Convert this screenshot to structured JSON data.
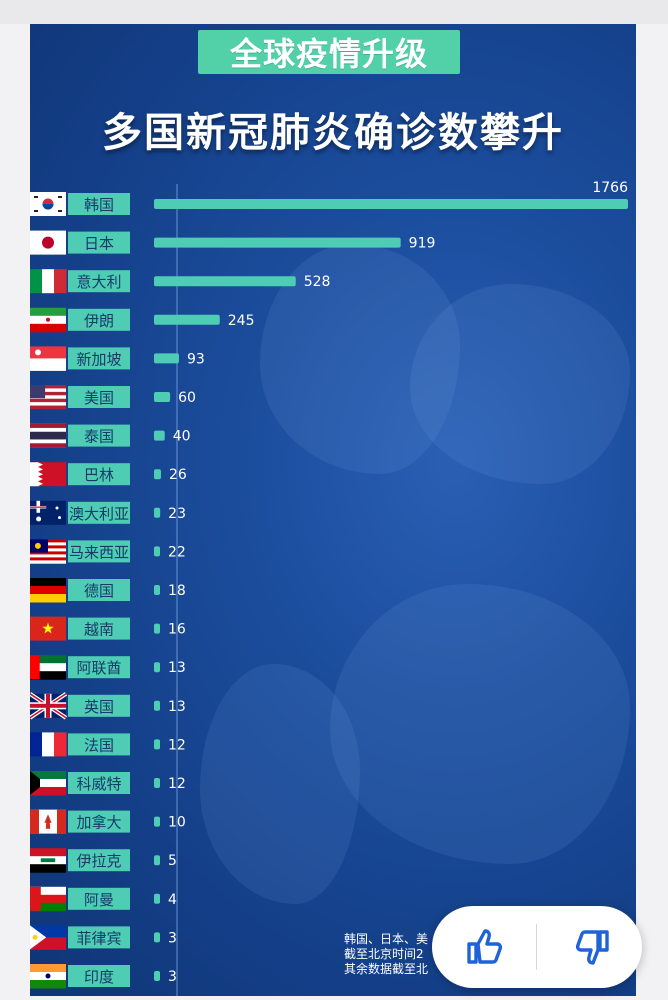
{
  "header": {
    "badge": "全球疫情升级",
    "title": "多国新冠肺炎确诊数攀升"
  },
  "footnote_lines": [
    "韩国、日本、美",
    "截至北京时间2",
    "其余数据截至北"
  ],
  "colors": {
    "bar": "#4ecdb4",
    "label_bg": "#4ecdb4",
    "text": "#ffffff"
  },
  "icons": {
    "like": "thumbs-up-icon",
    "dislike": "thumbs-down-icon"
  },
  "chart_data": {
    "type": "bar",
    "orientation": "horizontal",
    "title": "多国新冠肺炎确诊数攀升",
    "categories": [
      "韩国",
      "日本",
      "意大利",
      "伊朗",
      "新加坡",
      "美国",
      "泰国",
      "巴林",
      "澳大利亚",
      "马来西亚",
      "德国",
      "越南",
      "阿联酋",
      "英国",
      "法国",
      "科威特",
      "加拿大",
      "伊拉克",
      "阿曼",
      "菲律宾",
      "印度"
    ],
    "values": [
      1766,
      919,
      528,
      245,
      93,
      60,
      40,
      26,
      23,
      22,
      18,
      16,
      13,
      13,
      12,
      12,
      10,
      5,
      4,
      3,
      3
    ],
    "xlim": [
      0,
      1766
    ],
    "grid": false,
    "data_labels": true
  }
}
